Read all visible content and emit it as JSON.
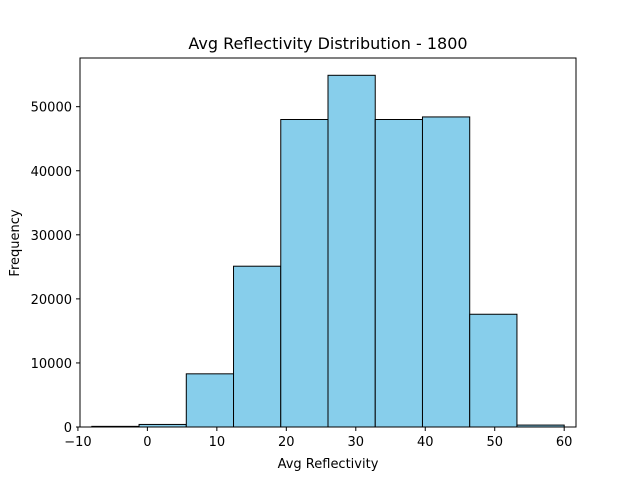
{
  "chart_data": {
    "type": "bar",
    "title": "Avg Reflectivity Distribution - 1800",
    "xlabel": "Avg Reflectivity",
    "ylabel": "Frequency",
    "bins": [
      {
        "x0": -8,
        "x1": -1.2,
        "value": 100
      },
      {
        "x0": -1.2,
        "x1": 5.6,
        "value": 400
      },
      {
        "x0": 5.6,
        "x1": 12.4,
        "value": 8300
      },
      {
        "x0": 12.4,
        "x1": 19.2,
        "value": 25100
      },
      {
        "x0": 19.2,
        "x1": 26.0,
        "value": 48000
      },
      {
        "x0": 26.0,
        "x1": 32.8,
        "value": 54900
      },
      {
        "x0": 32.8,
        "x1": 39.6,
        "value": 48000
      },
      {
        "x0": 39.6,
        "x1": 46.4,
        "value": 48400
      },
      {
        "x0": 46.4,
        "x1": 53.2,
        "value": 17600
      },
      {
        "x0": 53.2,
        "x1": 60.0,
        "value": 300
      }
    ],
    "xlim": [
      -9.7,
      61.7
    ],
    "ylim": [
      0,
      57600
    ],
    "xticks": [
      -10,
      0,
      10,
      20,
      30,
      40,
      50,
      60
    ],
    "yticks": [
      0,
      10000,
      20000,
      30000,
      40000,
      50000
    ],
    "xtick_labels": [
      "−10",
      "0",
      "10",
      "20",
      "30",
      "40",
      "50",
      "60"
    ],
    "ytick_labels": [
      "0",
      "10000",
      "20000",
      "30000",
      "40000",
      "50000"
    ],
    "bar_color": "#87ceeb",
    "edge_color": "#000000",
    "grid": false,
    "legend": false
  }
}
